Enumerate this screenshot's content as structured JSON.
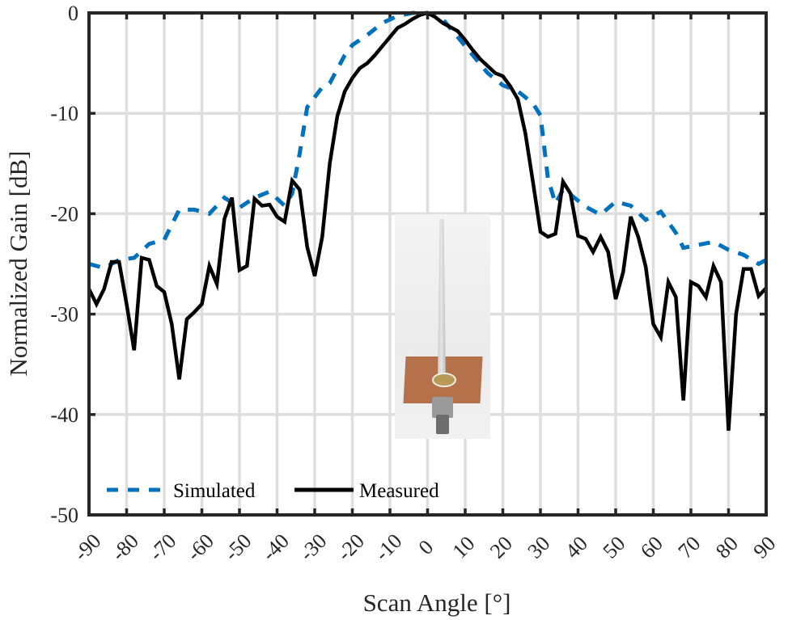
{
  "chart_data": {
    "type": "line",
    "title": "",
    "xlabel": "Scan Angle [°]",
    "ylabel": "Normalized Gain [dB]",
    "xlim": [
      -90,
      90
    ],
    "ylim": [
      -50,
      0
    ],
    "xticks": [
      -90,
      -80,
      -70,
      -60,
      -50,
      -40,
      -30,
      -20,
      -10,
      0,
      10,
      20,
      30,
      40,
      50,
      60,
      70,
      80,
      90
    ],
    "xtick_labels": [
      "-90",
      "-80",
      "-70",
      "-60",
      "-50",
      "-40",
      "-30",
      "-20",
      "-10",
      "0",
      "10",
      "20",
      "30",
      "40",
      "50",
      "60",
      "70",
      "80",
      "90"
    ],
    "yticks": [
      0,
      -10,
      -20,
      -30,
      -40,
      -50
    ],
    "ytick_labels": [
      "0",
      "-10",
      "-20",
      "-30",
      "-40",
      "-50"
    ],
    "grid": true,
    "legend": {
      "position": "lower-left",
      "orientation": "horizontal",
      "entries": [
        "Simulated",
        "Measured"
      ]
    },
    "series": [
      {
        "name": "Simulated",
        "style": "dashed",
        "color": "#0072BD",
        "x": [
          -90,
          -86,
          -82,
          -78,
          -74,
          -70,
          -66,
          -62,
          -58,
          -54,
          -50,
          -46,
          -42,
          -38,
          -36,
          -34,
          -32,
          -30,
          -28,
          -26,
          -24,
          -22,
          -20,
          -16,
          -12,
          -8,
          -4,
          0,
          4,
          8,
          12,
          16,
          20,
          24,
          28,
          30,
          32,
          34,
          36,
          38,
          42,
          46,
          50,
          54,
          58,
          62,
          66,
          68,
          72,
          76,
          80,
          84,
          88,
          90
        ],
        "y": [
          -25,
          -25.4,
          -24.6,
          -24.4,
          -23.0,
          -22.6,
          -19.6,
          -19.6,
          -20.0,
          -18.4,
          -19.4,
          -18.4,
          -17.8,
          -19.2,
          -18.0,
          -14.0,
          -9.4,
          -8.4,
          -7.4,
          -7.0,
          -5.6,
          -4.2,
          -3.2,
          -2.2,
          -1.0,
          -0.3,
          0,
          0,
          -0.6,
          -2.4,
          -4.2,
          -6.0,
          -7.2,
          -7.8,
          -9.0,
          -10.2,
          -16.5,
          -19.0,
          -17.6,
          -18.1,
          -19.3,
          -20.1,
          -18.8,
          -19.2,
          -20.6,
          -19.8,
          -21.9,
          -23.4,
          -23.1,
          -22.8,
          -23.6,
          -24.1,
          -25.0,
          -24.6
        ]
      },
      {
        "name": "Measured",
        "style": "solid",
        "color": "#000000",
        "x": [
          -90,
          -88,
          -86,
          -84,
          -82,
          -80,
          -78,
          -76,
          -74,
          -72,
          -70,
          -68,
          -66,
          -64,
          -62,
          -60,
          -58,
          -56,
          -54,
          -52,
          -50,
          -48,
          -46,
          -44,
          -42,
          -40,
          -38,
          -36,
          -34,
          -32,
          -30,
          -28,
          -26,
          -24,
          -22,
          -20,
          -18,
          -16,
          -14,
          -12,
          -10,
          -8,
          -6,
          -4,
          -2,
          0,
          2,
          4,
          6,
          8,
          10,
          12,
          14,
          16,
          18,
          20,
          22,
          24,
          26,
          28,
          30,
          32,
          34,
          36,
          38,
          40,
          42,
          44,
          46,
          48,
          50,
          52,
          54,
          56,
          58,
          60,
          62,
          64,
          66,
          68,
          70,
          72,
          74,
          76,
          78,
          80,
          82,
          84,
          86,
          88,
          90
        ],
        "y": [
          -27.5,
          -29.0,
          -27.5,
          -24.8,
          -24.8,
          -29.0,
          -33.6,
          -24.4,
          -24.6,
          -27.2,
          -27.8,
          -31.0,
          -36.5,
          -30.5,
          -29.8,
          -29.0,
          -25.2,
          -27.0,
          -20.5,
          -18.4,
          -25.6,
          -25.2,
          -18.5,
          -19.2,
          -19.1,
          -20.3,
          -20.8,
          -16.7,
          -17.6,
          -23.3,
          -26.2,
          -22.3,
          -15.0,
          -10.3,
          -7.8,
          -6.5,
          -5.5,
          -5.0,
          -4.2,
          -3.3,
          -2.4,
          -1.5,
          -1.1,
          -0.6,
          -0.2,
          0,
          -0.4,
          -1.0,
          -1.4,
          -1.8,
          -2.7,
          -3.7,
          -4.6,
          -5.3,
          -6.0,
          -6.3,
          -7.3,
          -8.6,
          -12.0,
          -16.8,
          -21.8,
          -22.3,
          -22.0,
          -16.8,
          -18.0,
          -22.2,
          -22.5,
          -23.8,
          -22.3,
          -23.8,
          -28.5,
          -25.8,
          -20.3,
          -22.3,
          -25.3,
          -31.0,
          -32.3,
          -26.8,
          -28.3,
          -38.6,
          -26.8,
          -27.2,
          -28.3,
          -25.2,
          -26.8,
          -41.6,
          -30.0,
          -25.5,
          -25.5,
          -28.2,
          -27.4
        ]
      }
    ],
    "annotations": [
      "inset photo of a tapered rod antenna mounted on a copper ground plane with coaxial connector"
    ]
  },
  "colors": {
    "simulated": "#0072BD",
    "measured": "#000000",
    "grid": "#dedede",
    "axis": "#262626"
  },
  "inset": {
    "description": "antenna-photo"
  }
}
